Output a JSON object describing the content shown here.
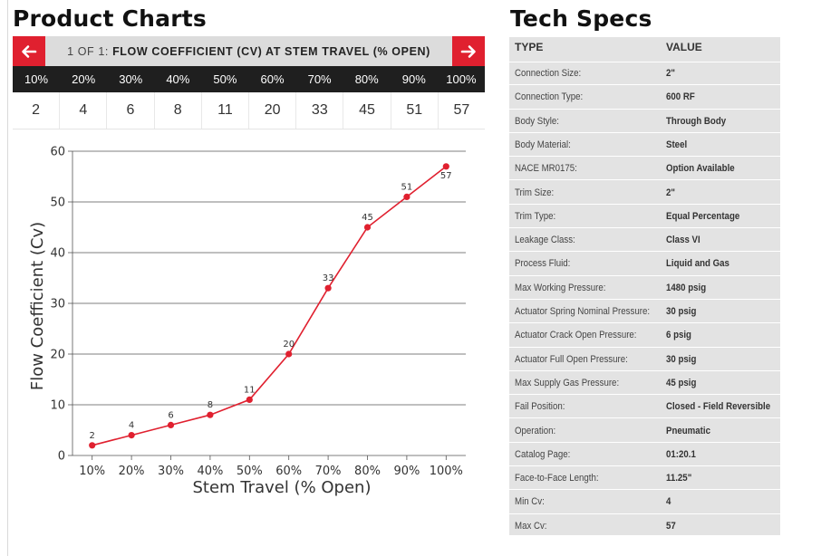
{
  "product_charts": {
    "heading": "Product Charts",
    "pager": "1 OF 1:",
    "chart_title": "FLOW COEFFICIENT (CV) AT STEM TRAVEL (% OPEN)",
    "percent_headers": [
      "10%",
      "20%",
      "30%",
      "40%",
      "50%",
      "60%",
      "70%",
      "80%",
      "90%",
      "100%"
    ],
    "values": [
      "2",
      "4",
      "6",
      "8",
      "11",
      "20",
      "33",
      "45",
      "51",
      "57"
    ],
    "prev_icon": "arrow-left-icon",
    "next_icon": "arrow-right-icon",
    "accent_color": "#e0202f"
  },
  "chart_data": {
    "type": "line",
    "categories": [
      "10%",
      "20%",
      "30%",
      "40%",
      "50%",
      "60%",
      "70%",
      "80%",
      "90%",
      "100%"
    ],
    "series": [
      {
        "values": [
          2,
          4,
          6,
          8,
          11,
          20,
          33,
          45,
          51,
          57
        ],
        "color": "#e0202f"
      }
    ],
    "data_labels": [
      "2",
      "4",
      "6",
      "8",
      "11",
      "20",
      "33",
      "45",
      "51",
      "57"
    ],
    "xlabel": "Stem Travel (% Open)",
    "ylabel": "Flow Coefficient (Cv)",
    "ylim": [
      0,
      60
    ],
    "yticks": [
      "0",
      "10",
      "20",
      "30",
      "40",
      "50",
      "60"
    ],
    "grid": true
  },
  "tech_specs": {
    "heading": "Tech Specs",
    "col_type": "TYPE",
    "col_value": "VALUE",
    "rows": [
      {
        "k": "Connection Size:",
        "v": "2\""
      },
      {
        "k": "Connection Type:",
        "v": "600 RF"
      },
      {
        "k": "Body Style:",
        "v": "Through Body"
      },
      {
        "k": "Body Material:",
        "v": "Steel"
      },
      {
        "k": "NACE MR0175:",
        "v": "Option Available"
      },
      {
        "k": "Trim Size:",
        "v": "2\""
      },
      {
        "k": "Trim Type:",
        "v": "Equal Percentage"
      },
      {
        "k": "Leakage Class:",
        "v": "Class VI"
      },
      {
        "k": "Process Fluid:",
        "v": "Liquid and Gas"
      },
      {
        "k": "Max Working Pressure:",
        "v": "1480 psig"
      },
      {
        "k": "Actuator Spring Nominal Pressure:",
        "v": "30 psig"
      },
      {
        "k": "Actuator Crack Open Pressure:",
        "v": "6 psig"
      },
      {
        "k": "Actuator Full Open Pressure:",
        "v": "30 psig"
      },
      {
        "k": "Max Supply Gas Pressure:",
        "v": "45 psig"
      },
      {
        "k": "Fail Position:",
        "v": "Closed - Field Reversible"
      },
      {
        "k": "Operation:",
        "v": "Pneumatic"
      },
      {
        "k": "Catalog Page:",
        "v": "01:20.1"
      },
      {
        "k": "Face-to-Face Length:",
        "v": "11.25\""
      },
      {
        "k": "Min Cv:",
        "v": "4"
      },
      {
        "k": "Max Cv:",
        "v": "57"
      }
    ]
  }
}
